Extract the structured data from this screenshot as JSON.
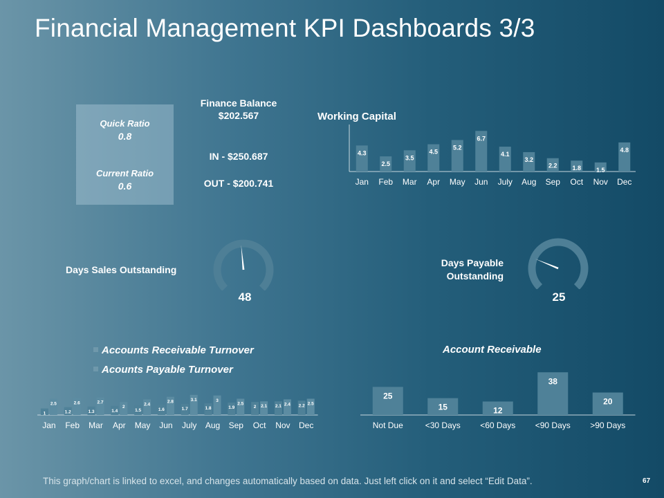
{
  "slide": {
    "title": "Financial Management KPI Dashboards 3/3",
    "footer": "This graph/chart is linked to excel, and changes automatically based on data. Just left click on it and select “Edit Data”.",
    "page_number": "67"
  },
  "ratios": {
    "quick_label": "Quick Ratio",
    "quick_value": "0.8",
    "current_label": "Current Ratio",
    "current_value": "0.6"
  },
  "finance": {
    "title_line1": "Finance Balance",
    "title_line2": "$202.567",
    "in_text": "IN - $250.687",
    "out_text": "OUT - $200.741"
  },
  "dso": {
    "label": "Days Sales Outstanding",
    "value": "48"
  },
  "dpo": {
    "label_line1": "Days Payable",
    "label_line2": "Outstanding",
    "value": "25"
  },
  "colors": {
    "bar": "#4f8198",
    "bar_light": "#5c8ca2",
    "axis": "#c9d8df",
    "gauge_track": "#4e7f96"
  },
  "chart_data": [
    {
      "id": "working-capital",
      "type": "bar",
      "title": "Working Capital",
      "categories": [
        "Jan",
        "Feb",
        "Mar",
        "Apr",
        "May",
        "Jun",
        "July",
        "Aug",
        "Sep",
        "Oct",
        "Nov",
        "Dec"
      ],
      "values": [
        4.3,
        2.5,
        3.5,
        4.5,
        5.2,
        6.7,
        4.1,
        3.2,
        2.2,
        1.8,
        1.5,
        4.8
      ],
      "labels": [
        "4.3",
        "2.5",
        "3.5",
        "4.5",
        "5.2",
        "6.7",
        "4.1",
        "3.2",
        "2.2",
        "1.8",
        "1.5",
        "4.8"
      ],
      "ylim": [
        0,
        7.3
      ]
    },
    {
      "id": "turnover",
      "type": "bar",
      "categories": [
        "Jan",
        "Feb",
        "Mar",
        "Apr",
        "May",
        "Jun",
        "July",
        "Aug",
        "Sep",
        "Oct",
        "Nov",
        "Dec"
      ],
      "series": [
        {
          "name": "Accounts Receivable Turnover",
          "values": [
            1,
            1.2,
            1.3,
            1.4,
            1.5,
            1.6,
            1.7,
            1.8,
            1.9,
            2,
            2.1,
            2.2
          ],
          "labels": [
            "1",
            "1.2",
            "1.3",
            "1.4",
            "1.5",
            "1.6",
            "1.7",
            "1.8",
            "1.9",
            "2",
            "2.1",
            "2.2"
          ]
        },
        {
          "name": "Acounts Payable Turnover",
          "values": [
            2.5,
            2.6,
            2.7,
            2,
            2.4,
            2.8,
            3.1,
            3,
            2.5,
            2.1,
            2.4,
            2.5
          ],
          "labels": [
            "2.5",
            "2.6",
            "2.7",
            "2",
            "2.4",
            "2.8",
            "3.1",
            "3",
            "2.5",
            "2.1",
            "2.4",
            "2.5"
          ]
        }
      ],
      "ylim": [
        0,
        3.4
      ],
      "legend": "top-left"
    },
    {
      "id": "account-receivable",
      "type": "bar",
      "title": "Account Receivable",
      "categories": [
        "Not Due",
        "<30 Days",
        "<60 Days",
        "<90 Days",
        ">90 Days"
      ],
      "values": [
        25,
        15,
        12,
        38,
        20
      ],
      "labels": [
        "25",
        "15",
        "12",
        "38",
        "20"
      ],
      "ylim": [
        0,
        40
      ]
    },
    {
      "id": "dso-gauge",
      "type": "gauge",
      "value": 48,
      "range": [
        0,
        100
      ]
    },
    {
      "id": "dpo-gauge",
      "type": "gauge",
      "value": 25,
      "range": [
        0,
        100
      ]
    }
  ]
}
